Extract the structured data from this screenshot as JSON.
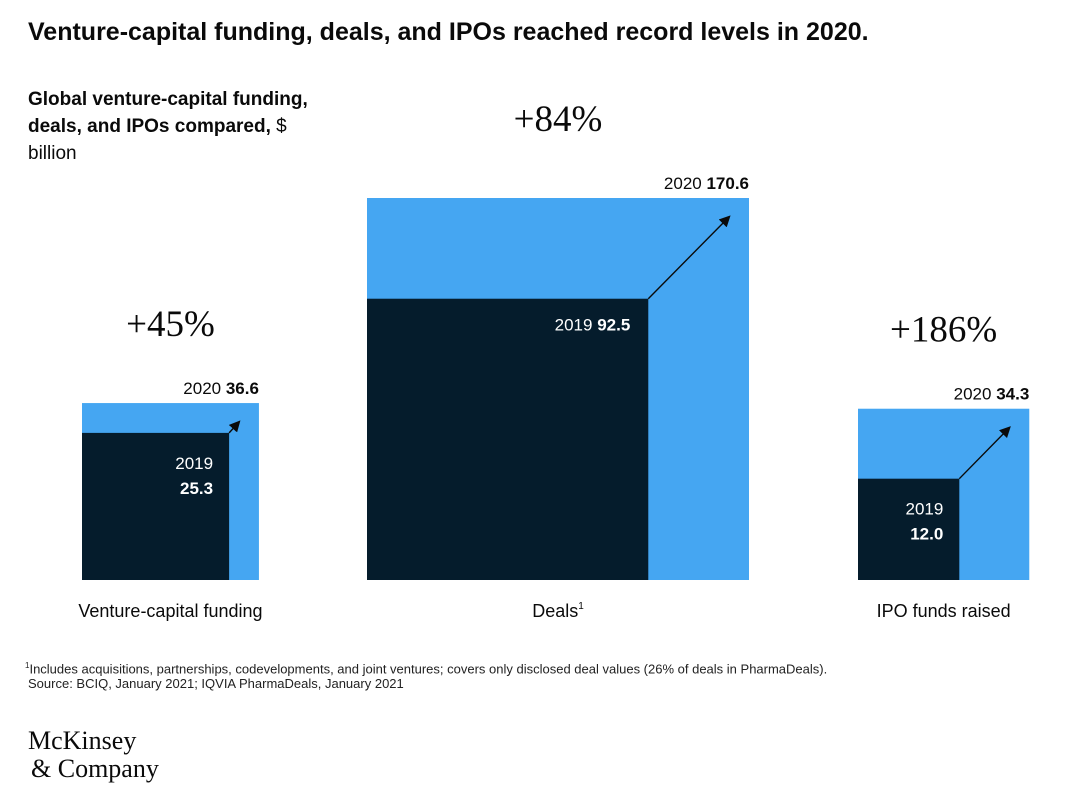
{
  "title": "Venture-capital funding, deals, and IPOs reached record levels in 2020.",
  "subtitle_bold": "Global venture-capital funding, deals, and IPOs compared,",
  "subtitle_unit": " $ billion",
  "colors": {
    "y2019": "#051c2c",
    "y2020": "#45a6f2",
    "text": "#0a0a0a",
    "label_on_dark": "#ffffff"
  },
  "chart_data": {
    "type": "bar",
    "title": "Global venture-capital funding, deals, and IPOs compared, $ billion",
    "unit": "$ billion",
    "categories": [
      "Venture-capital funding",
      "Deals",
      "IPO funds raised"
    ],
    "category_superscripts": [
      "",
      "1",
      ""
    ],
    "series": [
      {
        "name": "2019",
        "values": [
          25.3,
          92.5,
          12.0
        ],
        "labels": [
          "25.3",
          "92.5",
          "12.0"
        ]
      },
      {
        "name": "2020",
        "values": [
          36.6,
          170.6,
          34.3
        ],
        "labels": [
          "36.6",
          "170.6",
          "34.3"
        ]
      }
    ],
    "changes": [
      "+45%",
      "+84%",
      "+186%"
    ],
    "year_labels": {
      "y2019": "2019",
      "y2020": "2020"
    }
  },
  "footnote": {
    "marker": "1",
    "text": "Includes acquisitions, partnerships, codevelopments, and joint ventures; covers only disclosed deal values (26% of deals in PharmaDeals).",
    "source": "Source: BCIQ, January 2021; IQVIA PharmaDeals, January 2021"
  },
  "logo": {
    "line1": "McKinsey",
    "line2": "& Company"
  }
}
